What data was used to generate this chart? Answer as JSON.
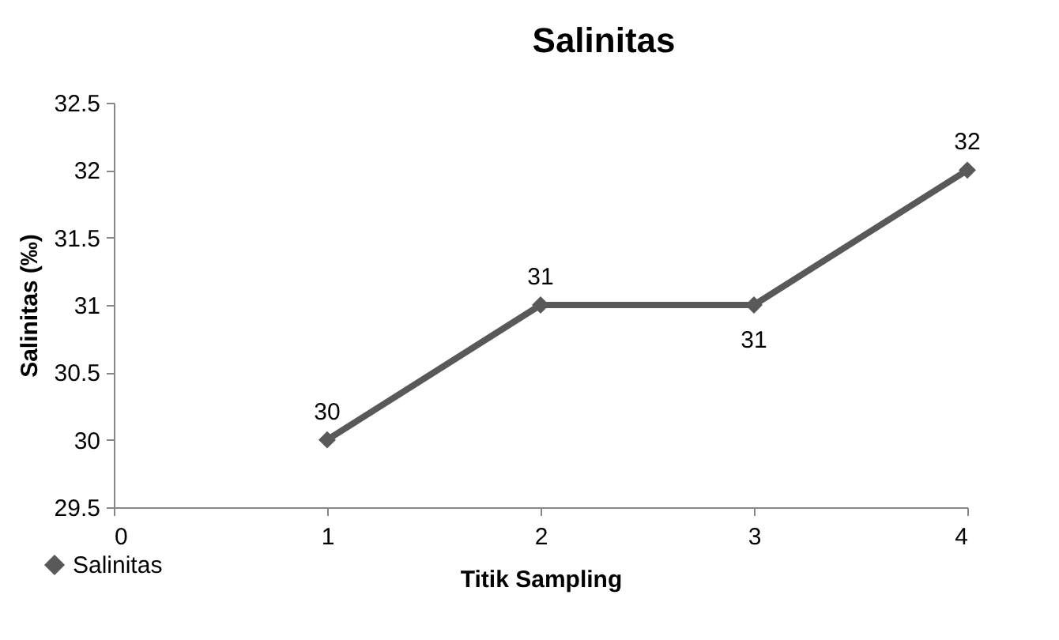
{
  "chart_data": {
    "type": "line",
    "title": "Salinitas",
    "xlabel": "Titik Sampling",
    "ylabel": "Salinitas (‰)",
    "x": [
      1,
      2,
      3,
      4
    ],
    "series": [
      {
        "name": "Salinitas",
        "color": "#595959",
        "values": [
          30,
          31,
          31,
          32
        ]
      }
    ],
    "xlim": [
      0,
      4
    ],
    "xticks": [
      0,
      1,
      2,
      3,
      4
    ],
    "ylim": [
      29.5,
      32.5
    ],
    "yticks": [
      29.5,
      30,
      30.5,
      31,
      31.5,
      32,
      32.5
    ],
    "data_labels": true,
    "marker": "diamond",
    "line_style": "solid",
    "grid": false,
    "legend": "bottom left"
  }
}
